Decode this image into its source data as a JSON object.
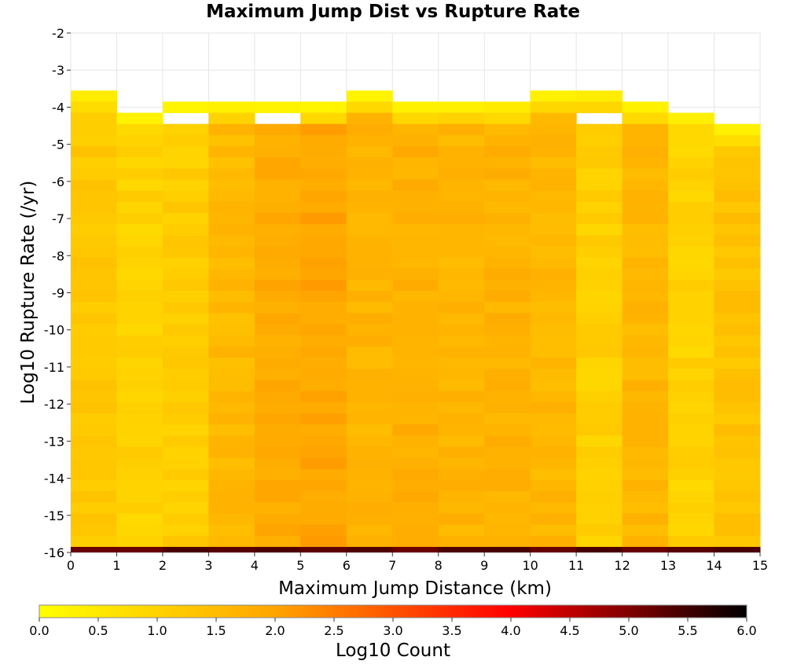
{
  "chart_data": {
    "type": "heatmap",
    "title": "Maximum Jump Dist vs Rupture Rate",
    "xlabel": "Maximum Jump Distance (km)",
    "ylabel": "Log10 Rupture Rate (/yr)",
    "xlim": [
      0,
      15
    ],
    "ylim": [
      -16,
      -2
    ],
    "x_ticks": [
      "0",
      "1",
      "2",
      "3",
      "4",
      "5",
      "6",
      "7",
      "8",
      "9",
      "10",
      "11",
      "12",
      "13",
      "14",
      "15"
    ],
    "y_ticks": [
      "-2",
      "-3",
      "-4",
      "-5",
      "-6",
      "-7",
      "-8",
      "-9",
      "-10",
      "-11",
      "-12",
      "-13",
      "-14",
      "-15",
      "-16"
    ],
    "x_bin_width": 1,
    "y_bin_height": 0.3,
    "y_bottom_bin_height": 0.15,
    "column_tops": [
      -3.55,
      -4.15,
      -3.85,
      -3.85,
      -3.85,
      -3.85,
      -3.55,
      -3.85,
      -3.85,
      -3.85,
      -3.55,
      -3.55,
      -3.85,
      -4.15,
      -4.45
    ],
    "column_gaps": [
      [],
      [],
      [
        -4.15
      ],
      [],
      [
        -4.15
      ],
      [],
      [],
      [],
      [],
      [],
      [],
      [
        -4.15
      ],
      [],
      [],
      []
    ],
    "column_levels": [
      1.2,
      1.0,
      1.1,
      1.55,
      1.85,
      1.95,
      1.65,
      1.75,
      1.65,
      1.7,
      1.6,
      1.05,
      1.6,
      1.0,
      1.35
    ],
    "bottom_row_value": 5.3,
    "colorbar": {
      "label": "Log10 Count",
      "min": 0,
      "max": 6,
      "ticks": [
        "0.0",
        "0.5",
        "1.0",
        "1.5",
        "2.0",
        "2.5",
        "3.0",
        "3.5",
        "4.0",
        "4.5",
        "5.0",
        "5.5",
        "6.0"
      ],
      "colors": [
        "#ffff00",
        "#ffa500",
        "#ff0000",
        "#000000"
      ]
    }
  }
}
